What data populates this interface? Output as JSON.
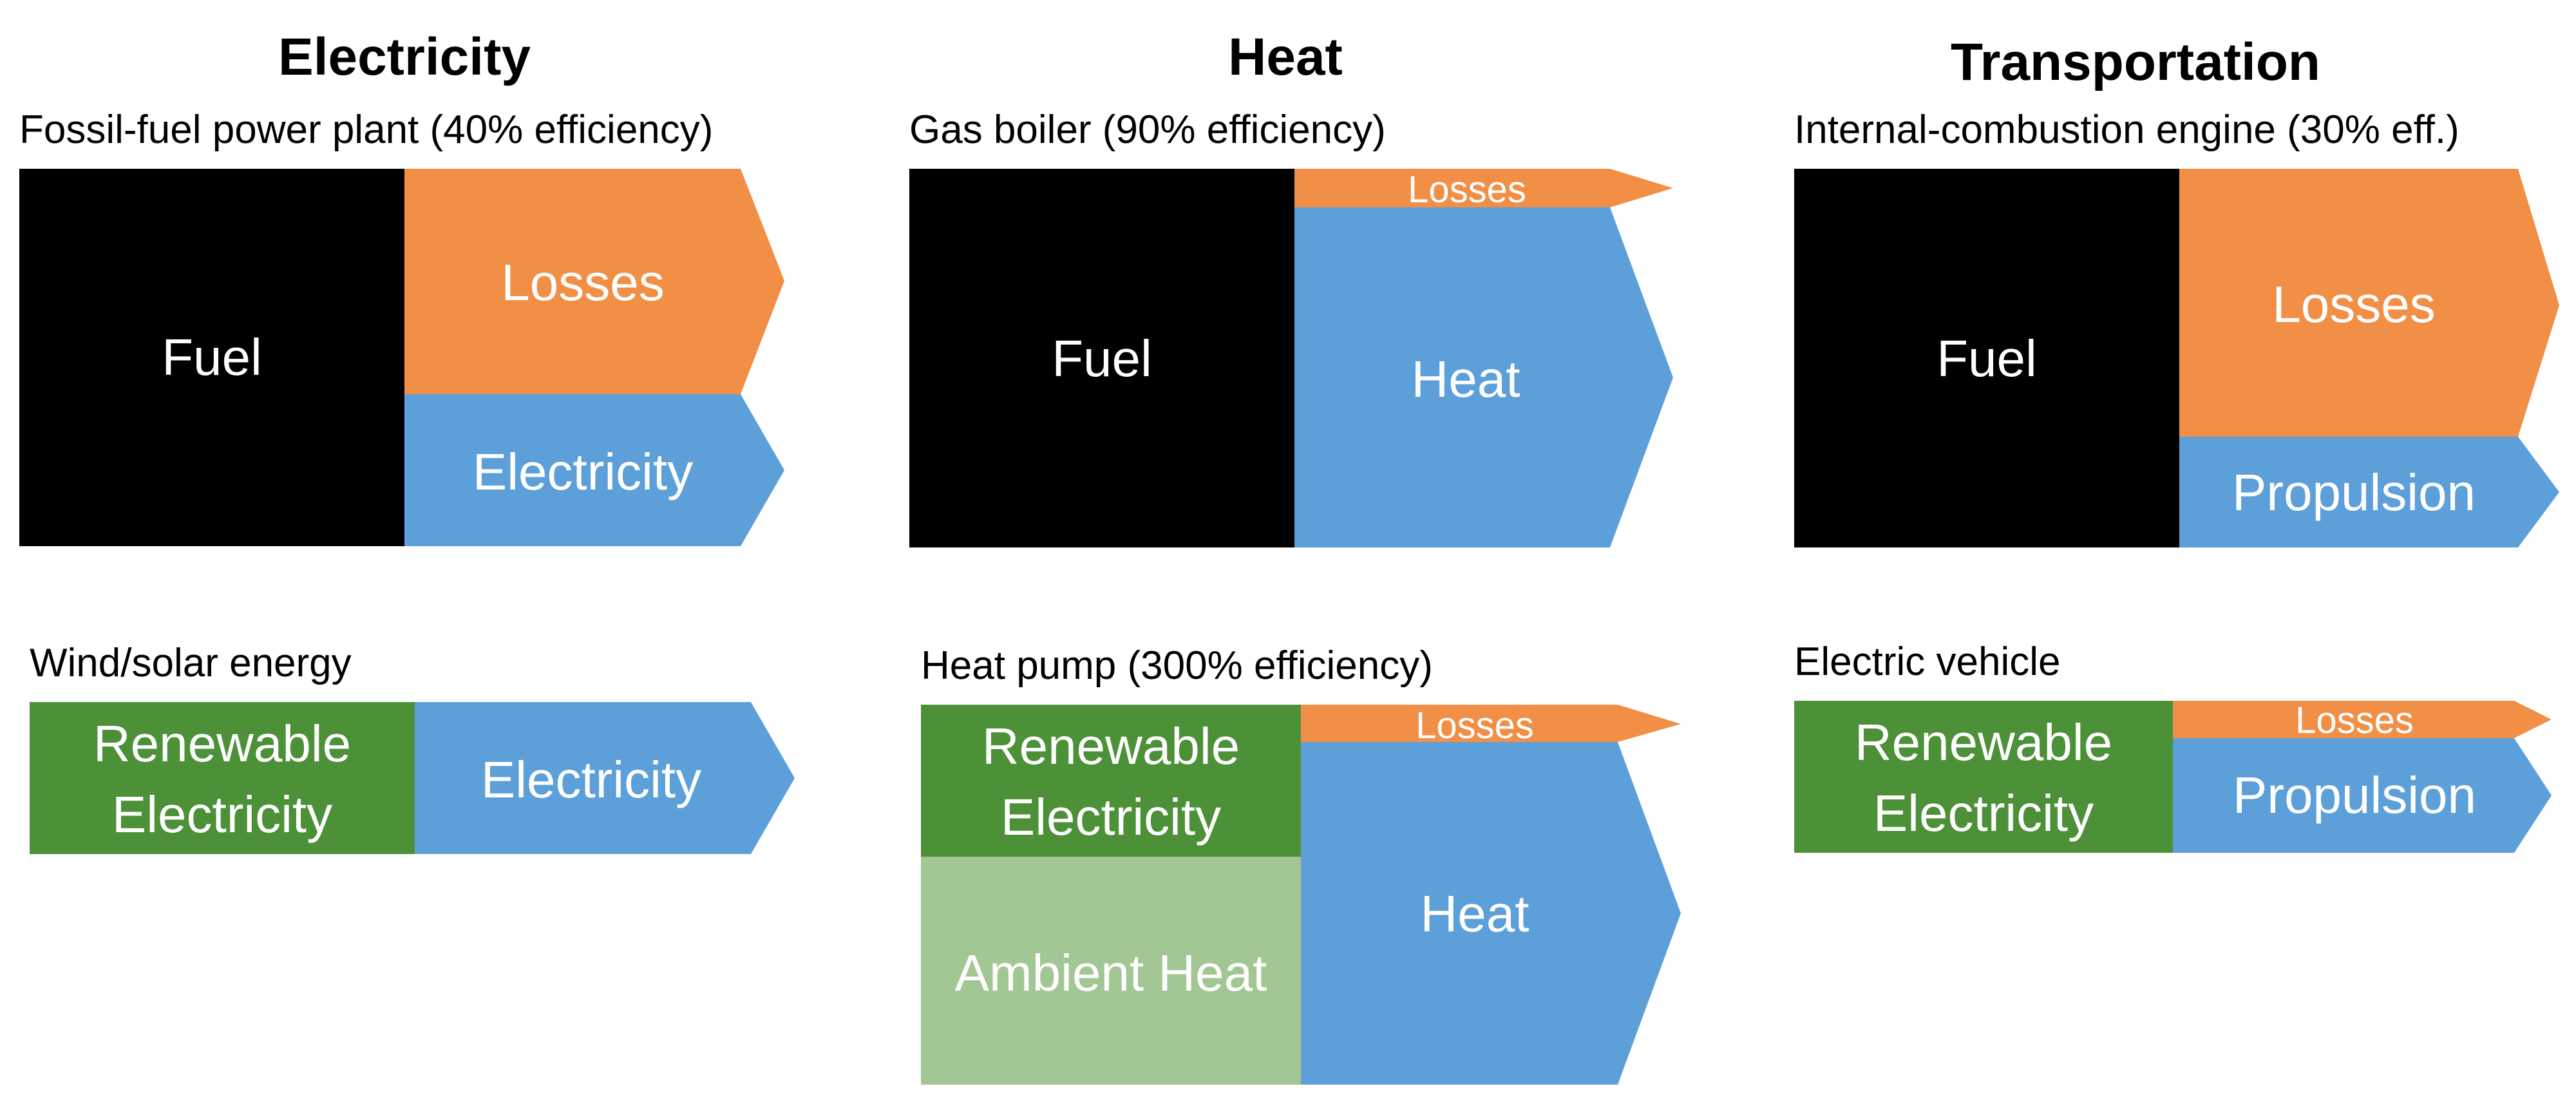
{
  "colors": {
    "fuel": "#000000",
    "losses": "#F18F46",
    "useful": "#5DA0D9",
    "renewable": "#4C9038",
    "ambient": "#A2C794"
  },
  "columns": {
    "electricity": {
      "title": "Electricity",
      "fossil": {
        "caption": "Fossil-fuel power plant (40% efficiency)",
        "input_label": "Fuel",
        "losses_label": "Losses",
        "output_label": "Electricity"
      },
      "renewable": {
        "caption": "Wind/solar energy",
        "input_label": "Renewable\nElectricity",
        "output_label": "Electricity"
      }
    },
    "heat": {
      "title": "Heat",
      "fossil": {
        "caption": "Gas boiler (90% efficiency)",
        "input_label": "Fuel",
        "losses_label": "Losses",
        "output_label": "Heat"
      },
      "renewable": {
        "caption": "Heat pump (300% efficiency)",
        "input_label": "Renewable\nElectricity",
        "ambient_label": "Ambient Heat",
        "losses_label": "Losses",
        "output_label": "Heat"
      }
    },
    "transportation": {
      "title": "Transportation",
      "fossil": {
        "caption": "Internal-combustion engine (30% eff.)",
        "input_label": "Fuel",
        "losses_label": "Losses",
        "output_label": "Propulsion"
      },
      "renewable": {
        "caption": "Electric vehicle",
        "input_label": "Renewable\nElectricity",
        "losses_label": "Losses",
        "output_label": "Propulsion"
      }
    }
  }
}
